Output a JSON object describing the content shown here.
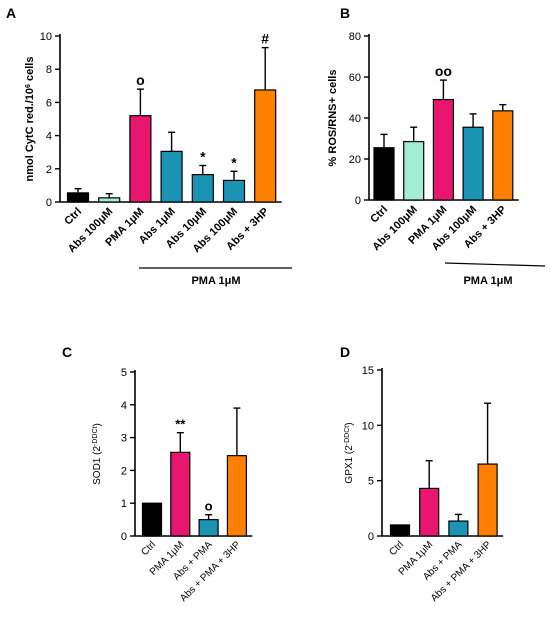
{
  "chart_data": [
    {
      "panel": "A",
      "type": "bar",
      "ylabel_main": "nmol CytC red./10",
      "ylabel_sup": "6",
      "ylabel_tail": " cells",
      "ylim": [
        0,
        10
      ],
      "yticks": [
        "0",
        "2",
        "4",
        "6",
        "8",
        "10"
      ],
      "categories": [
        "Ctrl",
        "Abs 100μM",
        "PMA 1μM",
        "Abs 1μM",
        "Abs 10μM",
        "Abs 100μM",
        "Abs + 3HP"
      ],
      "values": [
        0.55,
        0.25,
        5.2,
        3.05,
        1.65,
        1.3,
        6.75
      ],
      "errors": [
        0.25,
        0.25,
        1.6,
        1.15,
        0.55,
        0.55,
        2.55
      ],
      "colors": [
        "#000000",
        "#a3ecd6",
        "#e8166e",
        "#1b94b4",
        "#1b94b4",
        "#1b94b4",
        "#ff8000"
      ],
      "markers": [
        "",
        "",
        "o",
        "",
        "*",
        "*",
        "#"
      ],
      "group_label": "PMA 1μM",
      "group_span": [
        2,
        6
      ]
    },
    {
      "panel": "B",
      "type": "bar",
      "ylabel_main": "% ROS/RNS+ cells",
      "ylabel_sup": "",
      "ylabel_tail": "",
      "ylim": [
        0,
        80
      ],
      "yticks": [
        "0",
        "20",
        "40",
        "60",
        "80"
      ],
      "categories": [
        "Ctrl",
        "Abs 100μM",
        "PMA 1μM",
        "Abs 100μM",
        "Abs + 3HP"
      ],
      "values": [
        25.5,
        28.5,
        49,
        35.5,
        43.5
      ],
      "errors": [
        6.5,
        7,
        9.5,
        6.5,
        3
      ],
      "colors": [
        "#000000",
        "#a3ecd6",
        "#e8166e",
        "#1b94b4",
        "#ff8000"
      ],
      "markers": [
        "",
        "",
        "oo",
        "",
        ""
      ],
      "group_label": "PMA 1μM",
      "group_span": [
        2,
        4
      ]
    },
    {
      "panel": "C",
      "type": "bar",
      "ylabel_main": "SOD1 (2",
      "ylabel_sup": "-DDCt",
      "ylabel_tail": ")",
      "ylim": [
        0,
        5
      ],
      "yticks": [
        "0",
        "1",
        "2",
        "3",
        "4",
        "5"
      ],
      "categories": [
        "Ctrl",
        "PMA 1μM",
        "Abs + PMA",
        "Abs + PMA + 3HP"
      ],
      "values": [
        1.0,
        2.55,
        0.5,
        2.45
      ],
      "errors": [
        0,
        0.6,
        0.15,
        1.45
      ],
      "colors": [
        "#000000",
        "#e8166e",
        "#1b94b4",
        "#ff8000"
      ],
      "markers": [
        "",
        "**",
        "o",
        ""
      ],
      "group_label": "",
      "group_span": null
    },
    {
      "panel": "D",
      "type": "bar",
      "ylabel_main": "GPX1 (2",
      "ylabel_sup": "-DDCt",
      "ylabel_tail": ")",
      "ylim": [
        0,
        15
      ],
      "yticks": [
        "0",
        "5",
        "10",
        "15"
      ],
      "categories": [
        "Ctrl",
        "PMA 1μM",
        "Abs + PMA",
        "Abs + PMA + 3HP"
      ],
      "values": [
        1.0,
        4.3,
        1.35,
        6.5
      ],
      "errors": [
        0,
        2.5,
        0.6,
        5.5
      ],
      "colors": [
        "#000000",
        "#e8166e",
        "#1b94b4",
        "#ff8000"
      ],
      "markers": [
        "",
        "",
        "",
        ""
      ],
      "group_label": "",
      "group_span": null
    }
  ]
}
